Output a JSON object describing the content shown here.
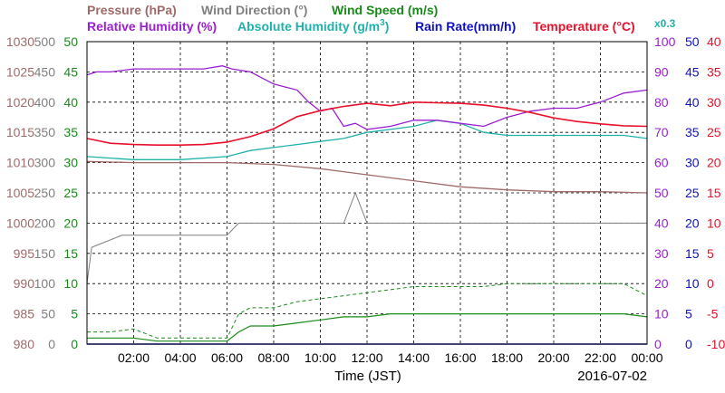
{
  "chart_data": {
    "type": "line",
    "legend": {
      "pressure": "Pressure (hPa)",
      "wind_direction": "Wind Direction (°)",
      "wind_speed": "Wind Speed (m/s)",
      "relative_humidity": "Relative Humidity (%)",
      "absolute_humidity": "Absolute Humidity (g/m",
      "absolute_humidity_sup": "3",
      "absolute_humidity_close": ")",
      "rain_rate": "Rain Rate(mm/h)",
      "temperature": "Temperature (°C)",
      "rain_scale": "x0.3"
    },
    "xlabel": "Time (JST)",
    "date": "2016-07-02",
    "x_ticks": [
      "02:00",
      "04:00",
      "06:00",
      "08:00",
      "10:00",
      "12:00",
      "14:00",
      "16:00",
      "18:00",
      "20:00",
      "22:00",
      "00:00"
    ],
    "x_range_hours": [
      0,
      24
    ],
    "axes_left": {
      "pressure": [
        "1030",
        "1025",
        "1020",
        "1015",
        "1010",
        "1005",
        "1000",
        "995",
        "990",
        "985",
        "980"
      ],
      "wind_direction": [
        "500",
        "450",
        "400",
        "350",
        "300",
        "250",
        "200",
        "150",
        "100",
        "50",
        "0"
      ],
      "wind_speed": [
        "50",
        "45",
        "40",
        "35",
        "30",
        "25",
        "20",
        "15",
        "10",
        "5",
        "0"
      ]
    },
    "axes_right": {
      "relative_humidity": [
        "100",
        "90",
        "80",
        "70",
        "60",
        "50",
        "40",
        "30",
        "20",
        "10",
        "0"
      ],
      "rain_rate": [
        "50",
        "45",
        "40",
        "35",
        "30",
        "25",
        "20",
        "15",
        "10",
        "5",
        "0"
      ],
      "temperature": [
        "40",
        "35",
        "30",
        "25",
        "20",
        "15",
        "10",
        "5",
        "0",
        "-5",
        "-10"
      ]
    },
    "ranges": {
      "pressure": [
        980,
        1030
      ],
      "wind_direction": [
        0,
        500
      ],
      "wind_speed": [
        0,
        50
      ],
      "relative_humidity": [
        0,
        100
      ],
      "absolute_humidity": [
        0,
        50
      ],
      "rain_rate": [
        0,
        50
      ],
      "temperature": [
        -10,
        40
      ]
    },
    "grid": true,
    "colors": {
      "pressure": "#a06a6a",
      "wind_direction": "#808080",
      "wind_speed": "#1a8a1a",
      "relative_humidity": "#9a1fd1",
      "absolute_humidity": "#20b2aa",
      "rain_rate": "#1010c8",
      "temperature": "#e8102a"
    },
    "series": {
      "pressure": {
        "x": [
          0,
          2,
          4,
          6,
          8,
          10,
          12,
          14,
          16,
          18,
          20,
          22,
          24
        ],
        "y": [
          1010.2,
          1010,
          1010,
          1010,
          1009.7,
          1009,
          1008,
          1007,
          1006,
          1005.5,
          1005.2,
          1005.2,
          1005
        ]
      },
      "wind_direction": {
        "x": [
          0,
          0.2,
          1.5,
          6.0,
          6.5,
          9,
          11,
          11.5,
          12,
          14,
          16,
          18,
          20,
          22,
          24
        ],
        "y": [
          100,
          160,
          180,
          180,
          200,
          200,
          200,
          250,
          200,
          200,
          200,
          200,
          200,
          200,
          200
        ]
      },
      "temperature": {
        "x": [
          0,
          1,
          2,
          3,
          4,
          5,
          6,
          7,
          8,
          9,
          10,
          11,
          12,
          13,
          14,
          15,
          16,
          17,
          18,
          19,
          20,
          21,
          22,
          23,
          24
        ],
        "y": [
          24,
          23.2,
          23,
          22.9,
          22.9,
          23,
          23.4,
          24.3,
          25.6,
          27.6,
          28.6,
          29.3,
          29.8,
          29.4,
          30,
          29.9,
          29.8,
          29.5,
          29,
          28.3,
          27.4,
          26.8,
          26.4,
          26.1,
          26
        ]
      },
      "relative_humidity": {
        "x": [
          0,
          0.4,
          1,
          2,
          3,
          4,
          5,
          5.8,
          6.2,
          7,
          8,
          8.5,
          9,
          9.5,
          10,
          10.5,
          11,
          11.5,
          12,
          13,
          14,
          15,
          16,
          17,
          18,
          19,
          20,
          21,
          22,
          23,
          24
        ],
        "y": [
          89,
          90,
          90,
          91,
          91,
          91,
          91,
          92,
          91,
          90,
          86,
          85,
          84,
          80,
          77,
          78,
          72,
          73,
          71,
          72,
          74,
          74,
          73,
          72,
          75,
          77,
          78,
          78,
          80,
          83,
          84
        ]
      },
      "absolute_humidity": {
        "x": [
          0,
          2,
          4,
          6,
          7,
          8,
          9,
          10,
          11,
          12,
          13,
          14,
          15,
          16,
          17,
          18,
          19,
          20,
          21,
          22,
          23,
          24
        ],
        "y": [
          31,
          30.5,
          30.5,
          31,
          32,
          32.5,
          33,
          33.5,
          34,
          35,
          35.5,
          36,
          37,
          36.5,
          35,
          34.5,
          34.5,
          34.5,
          34.5,
          34.5,
          34.5,
          34
        ]
      },
      "rain_rate": {
        "x": [
          0,
          24
        ],
        "y": [
          0,
          0
        ]
      },
      "wind_speed": {
        "x": [
          0,
          1,
          2,
          3,
          4,
          5,
          6,
          6.5,
          7,
          8,
          9,
          10,
          11,
          12,
          13,
          14,
          15,
          16,
          17,
          18,
          19,
          20,
          21,
          22,
          23,
          24
        ],
        "y": [
          1,
          1,
          1,
          0.5,
          0.5,
          0.5,
          0.5,
          2,
          3,
          3,
          3.5,
          4,
          4.5,
          4.5,
          5,
          5,
          5,
          5,
          5,
          5,
          5,
          5,
          5,
          5,
          5,
          4.5
        ]
      },
      "wind_gust": {
        "x": [
          0,
          1,
          2,
          3,
          4,
          5,
          6,
          6.5,
          7,
          8,
          9,
          10,
          11,
          12,
          13,
          14,
          15,
          16,
          17,
          18,
          19,
          20,
          21,
          22,
          23,
          24
        ],
        "y": [
          2,
          2,
          2.5,
          1,
          1,
          1,
          1,
          5,
          6,
          6,
          7,
          7.5,
          8,
          8.5,
          9,
          9.5,
          9.5,
          9.5,
          9.5,
          10,
          10,
          10,
          10,
          10,
          10,
          8
        ]
      }
    }
  }
}
